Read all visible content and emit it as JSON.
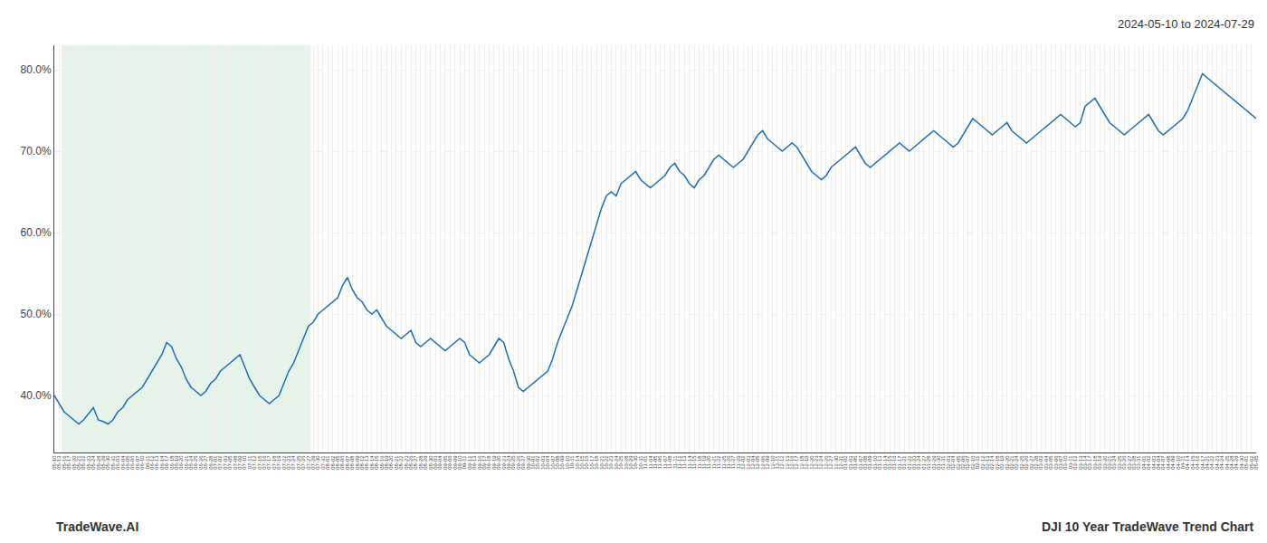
{
  "chart_data": {
    "type": "line",
    "annotations": [
      "2024-05-10 to 2024-07-29",
      "TradeWave.AI",
      "DJI 10 Year TradeWave Trend Chart"
    ],
    "shade": {
      "from": "05-16",
      "to": "07-27",
      "color": "#d4edda"
    },
    "color": "#1f6db5",
    "grid": true,
    "ylim": [
      33.0,
      83.0
    ],
    "yticks": [
      {
        "value": 40.0,
        "label": "40.0%"
      },
      {
        "value": 50.0,
        "label": "50.0%"
      },
      {
        "value": 60.0,
        "label": "60.0%"
      },
      {
        "value": 70.0,
        "label": "70.0%"
      },
      {
        "value": 80.0,
        "label": "80.0%"
      }
    ],
    "categories": [
      "05-10",
      "05-13",
      "05-16",
      "05-17",
      "05-20",
      "05-21",
      "05-22",
      "05-23",
      "05-24",
      "05-28",
      "05-29",
      "05-30",
      "05-31",
      "06-03",
      "06-04",
      "06-05",
      "06-06",
      "06-07",
      "06-10",
      "06-11",
      "06-12",
      "06-13",
      "06-14",
      "06-17",
      "06-18",
      "06-19",
      "06-20",
      "06-21",
      "06-24",
      "06-25",
      "06-26",
      "06-27",
      "06-28",
      "07-01",
      "07-02",
      "07-03",
      "07-05",
      "07-08",
      "07-09",
      "07-10",
      "07-11",
      "07-12",
      "07-15",
      "07-16",
      "07-17",
      "07-18",
      "07-19",
      "07-22",
      "07-23",
      "07-24",
      "07-25",
      "07-26",
      "07-27",
      "07-29",
      "07-30",
      "07-31",
      "08-01",
      "08-02",
      "08-05",
      "08-06",
      "08-07",
      "08-08",
      "08-09",
      "08-12",
      "08-13",
      "08-14",
      "08-15",
      "08-16",
      "08-19",
      "08-20",
      "08-21",
      "08-22",
      "08-23",
      "08-26",
      "08-27",
      "08-28",
      "08-29",
      "08-30",
      "09-03",
      "09-04",
      "09-05",
      "09-06",
      "09-09",
      "09-10",
      "09-11",
      "09-12",
      "09-13",
      "09-16",
      "09-17",
      "09-18",
      "09-19",
      "09-20",
      "09-23",
      "09-24",
      "09-25",
      "09-26",
      "09-27",
      "09-30",
      "10-01",
      "10-02",
      "10-03",
      "10-04",
      "10-07",
      "10-08",
      "10-09",
      "10-10",
      "10-11",
      "10-14",
      "10-15",
      "10-16",
      "10-17",
      "10-18",
      "10-21",
      "10-22",
      "10-23",
      "10-24",
      "10-25",
      "10-28",
      "10-29",
      "10-30",
      "10-31",
      "11-01",
      "11-04",
      "11-05",
      "11-06",
      "11-07",
      "11-08",
      "11-11",
      "11-12",
      "11-13",
      "11-14",
      "11-15",
      "11-18",
      "11-19",
      "11-20",
      "11-21",
      "11-22",
      "11-25",
      "11-26",
      "11-27",
      "11-29",
      "12-02",
      "12-03",
      "12-04",
      "12-05",
      "12-06",
      "12-09",
      "12-10",
      "12-11",
      "12-12",
      "12-13",
      "12-16",
      "12-17",
      "12-18",
      "12-19",
      "12-20",
      "12-23",
      "12-24",
      "12-26",
      "12-27",
      "12-30",
      "12-31",
      "01-02",
      "01-03",
      "01-06",
      "01-07",
      "01-08",
      "01-09",
      "01-10",
      "01-13",
      "01-14",
      "01-15",
      "01-16",
      "01-17",
      "01-21",
      "01-22",
      "01-23",
      "01-24",
      "01-27",
      "01-28",
      "01-29",
      "01-30",
      "01-31",
      "02-03",
      "02-04",
      "02-05",
      "02-06",
      "02-07",
      "02-10",
      "02-11",
      "02-12",
      "02-13",
      "02-14",
      "02-18",
      "02-19",
      "02-20",
      "02-21",
      "02-24",
      "02-25",
      "02-26",
      "02-27",
      "02-28",
      "03-03",
      "03-04",
      "03-05",
      "03-06",
      "03-07",
      "03-10",
      "03-11",
      "03-12",
      "03-13",
      "03-14",
      "03-17",
      "03-18",
      "03-19",
      "03-20",
      "03-21",
      "03-24",
      "03-25",
      "03-26",
      "03-27",
      "03-28",
      "03-31",
      "04-01",
      "04-02",
      "04-03",
      "04-04",
      "04-07",
      "04-08",
      "04-09",
      "04-10",
      "04-11",
      "04-14",
      "04-15",
      "04-16",
      "04-17",
      "04-21",
      "04-22",
      "04-23",
      "04-24",
      "04-25",
      "04-28",
      "04-29",
      "04-30",
      "05-01",
      "05-02",
      "05-05"
    ],
    "values": [
      40.0,
      39.0,
      38.0,
      37.5,
      37.0,
      36.5,
      37.0,
      37.8,
      38.5,
      37.0,
      36.8,
      36.5,
      37.0,
      38.0,
      38.5,
      39.5,
      40.0,
      40.5,
      41.0,
      42.0,
      43.0,
      44.0,
      45.0,
      46.5,
      46.0,
      44.5,
      43.5,
      42.0,
      41.0,
      40.5,
      40.0,
      40.5,
      41.5,
      42.0,
      43.0,
      43.5,
      44.0,
      44.5,
      45.0,
      43.5,
      42.0,
      41.0,
      40.0,
      39.5,
      39.0,
      39.5,
      40.0,
      41.5,
      43.0,
      44.0,
      45.5,
      47.0,
      48.5,
      49.0,
      50.0,
      50.5,
      51.0,
      51.5,
      52.0,
      53.5,
      54.5,
      53.0,
      52.0,
      51.5,
      50.5,
      50.0,
      50.5,
      49.5,
      48.5,
      48.0,
      47.5,
      47.0,
      47.5,
      48.0,
      46.5,
      46.0,
      46.5,
      47.0,
      46.5,
      46.0,
      45.5,
      46.0,
      46.5,
      47.0,
      46.5,
      45.0,
      44.5,
      44.0,
      44.5,
      45.0,
      46.0,
      47.0,
      46.5,
      44.5,
      43.0,
      41.0,
      40.5,
      41.0,
      41.5,
      42.0,
      42.5,
      43.0,
      44.5,
      46.5,
      48.0,
      49.5,
      51.0,
      53.0,
      55.0,
      57.0,
      59.0,
      61.0,
      63.0,
      64.5,
      65.0,
      64.5,
      66.0,
      66.5,
      67.0,
      67.5,
      66.5,
      66.0,
      65.5,
      66.0,
      66.5,
      67.0,
      68.0,
      68.5,
      67.5,
      67.0,
      66.0,
      65.5,
      66.5,
      67.0,
      68.0,
      69.0,
      69.5,
      69.0,
      68.5,
      68.0,
      68.5,
      69.0,
      70.0,
      71.0,
      72.0,
      72.5,
      71.5,
      71.0,
      70.5,
      70.0,
      70.5,
      71.0,
      70.5,
      69.5,
      68.5,
      67.5,
      67.0,
      66.5,
      67.0,
      68.0,
      68.5,
      69.0,
      69.5,
      70.0,
      70.5,
      69.5,
      68.5,
      68.0,
      68.5,
      69.0,
      69.5,
      70.0,
      70.5,
      71.0,
      70.5,
      70.0,
      70.5,
      71.0,
      71.5,
      72.0,
      72.5,
      72.0,
      71.5,
      71.0,
      70.5,
      71.0,
      72.0,
      73.0,
      74.0,
      73.5,
      73.0,
      72.5,
      72.0,
      72.5,
      73.0,
      73.5,
      72.5,
      72.0,
      71.5,
      71.0,
      71.5,
      72.0,
      72.5,
      73.0,
      73.5,
      74.0,
      74.5,
      74.0,
      73.5,
      73.0,
      73.5,
      75.5,
      76.0,
      76.5,
      75.5,
      74.5,
      73.5,
      73.0,
      72.5,
      72.0,
      72.5,
      73.0,
      73.5,
      74.0,
      74.5,
      73.5,
      72.5,
      72.0,
      72.5,
      73.0,
      73.5,
      74.0,
      75.0,
      76.5,
      78.0,
      79.5,
      79.0,
      78.5,
      78.0,
      77.5,
      77.0,
      76.5,
      76.0,
      75.5,
      75.0,
      74.5,
      74.0
    ]
  }
}
